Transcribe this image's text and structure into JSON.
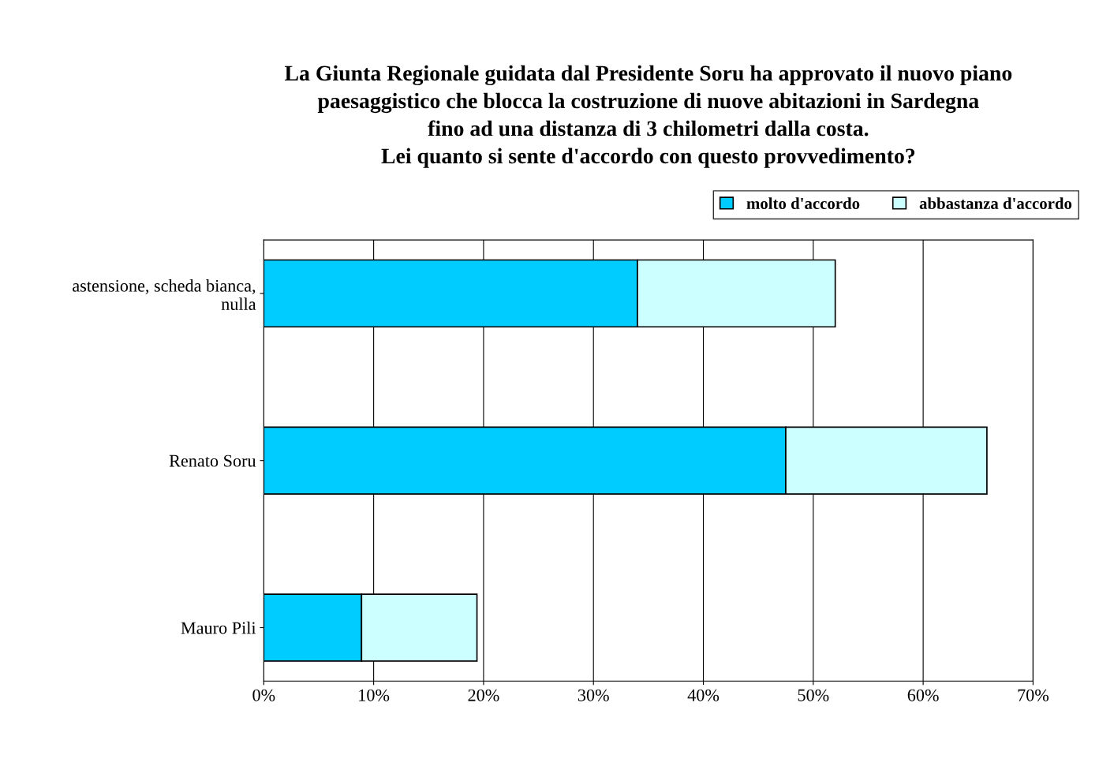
{
  "chart_data": {
    "type": "bar",
    "orientation": "horizontal",
    "stacked": true,
    "title": "La Giunta Regionale guidata dal Presidente Soru ha approvato il nuovo piano\npaesaggistico che blocca la costruzione di nuove abitazioni in Sardegna\nfino ad una distanza di 3 chilometri dalla costa.\nLei quanto si sente d'accordo con questo provvedimento?",
    "categories": [
      "astensione, scheda bianca,\nnulla",
      "Renato Soru",
      "Mauro Pili"
    ],
    "series": [
      {
        "name": "molto d'accordo",
        "color": "#00ccff",
        "values": [
          34,
          47.5,
          8.9
        ]
      },
      {
        "name": "abbastanza d'accordo",
        "color": "#ccffff",
        "values": [
          18,
          18.3,
          10.5
        ]
      }
    ],
    "xlim": [
      0,
      70
    ],
    "xticks": [
      {
        "value": 0,
        "label": "0%"
      },
      {
        "value": 10,
        "label": "10%"
      },
      {
        "value": 20,
        "label": "20%"
      },
      {
        "value": 30,
        "label": "30%"
      },
      {
        "value": 40,
        "label": "40%"
      },
      {
        "value": 50,
        "label": "50%"
      },
      {
        "value": 60,
        "label": "60%"
      },
      {
        "value": 70,
        "label": "70%"
      }
    ],
    "grid": "x",
    "legend": "top right"
  }
}
